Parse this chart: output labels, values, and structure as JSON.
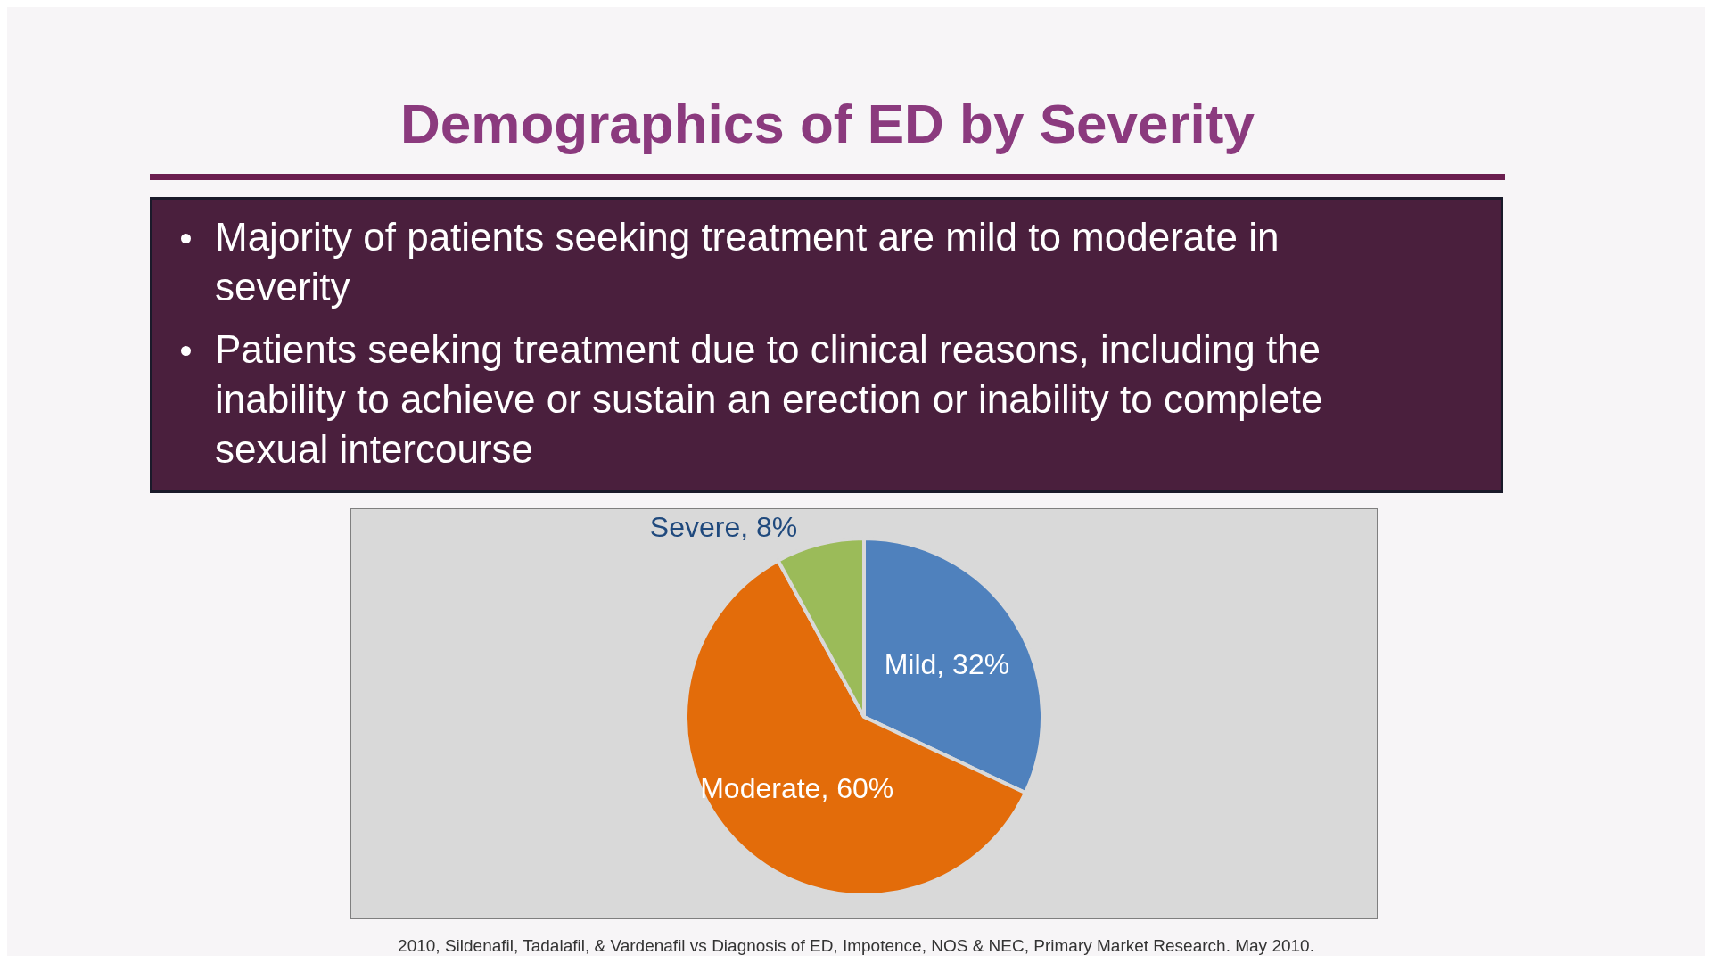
{
  "chart_data": {
    "type": "pie",
    "title": "Demographics of ED by Severity",
    "annotations": [
      "Majority of patients seeking treatment are mild to moderate in severity",
      "Patients seeking treatment due to clinical reasons, including the inability to achieve or sustain an erection or inability to complete sexual intercourse",
      "2010, Sildenafil, Tadalafil, & Vardenafil vs Diagnosis of ED, Impotence, NOS & NEC, Primary Market Research. May 2010."
    ],
    "categories": [
      "Mild",
      "Moderate",
      "Severe"
    ],
    "values": [
      32,
      60,
      8
    ],
    "value_labels": [
      "32%",
      "60%",
      "8%"
    ],
    "colors": [
      "#4f81bd",
      "#e36c0a",
      "#9bbb59"
    ],
    "legend": false
  }
}
